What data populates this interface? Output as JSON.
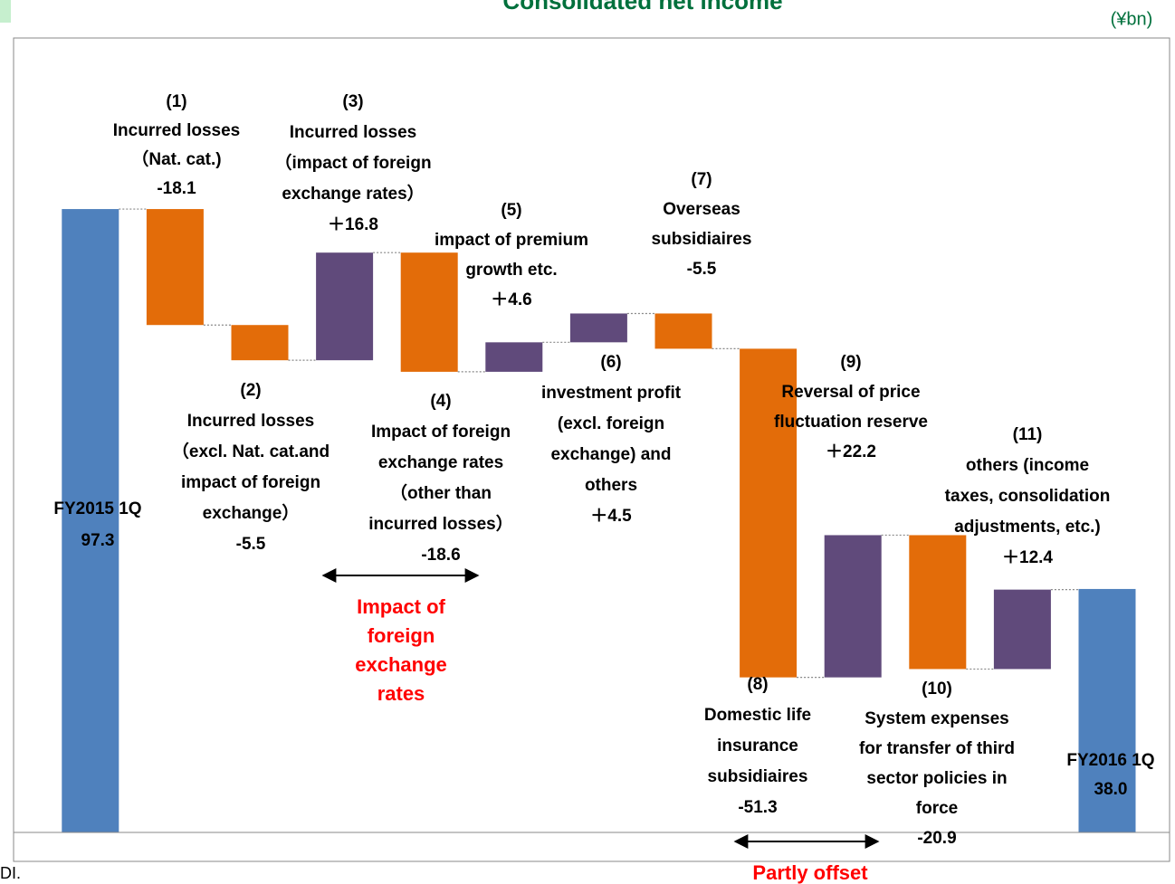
{
  "chart_data": {
    "type": "waterfall",
    "title": "Consolidated net income",
    "unit": "(¥bn)",
    "footnote": "DI.",
    "categories": [
      [
        "FY2015 1Q"
      ],
      [
        "(1)",
        "Incurred losses",
        "（Nat. cat.)"
      ],
      [
        "(2)",
        "Incurred losses",
        "（excl. Nat. cat.and",
        "impact of foreign",
        "exchange）"
      ],
      [
        "(3)",
        "Incurred losses",
        "（impact of foreign",
        "exchange rates）"
      ],
      [
        "(4)",
        "Impact of foreign",
        "exchange rates",
        "（other than",
        "incurred losses）"
      ],
      [
        "(5)",
        "impact of premium",
        "growth etc."
      ],
      [
        "(6)",
        "investment profit",
        "(excl. foreign",
        "exchange) and",
        "others"
      ],
      [
        "(7)",
        "Overseas",
        "subsidiaires"
      ],
      [
        "(8)",
        "Domestic life",
        "insurance",
        "subsidiaires"
      ],
      [
        "(9)",
        "Reversal of price",
        "fluctuation reserve"
      ],
      [
        "(10)",
        "System expenses",
        "for transfer of third",
        "sector policies in",
        "force"
      ],
      [
        "(11)",
        "others (income",
        "taxes, consolidation",
        "adjustments, etc.)"
      ],
      [
        "FY2016 1Q"
      ]
    ],
    "measures": [
      "total",
      "relative",
      "relative",
      "relative",
      "relative",
      "relative",
      "relative",
      "relative",
      "relative",
      "relative",
      "relative",
      "relative",
      "total"
    ],
    "values": [
      97.3,
      -18.1,
      -5.5,
      16.8,
      -18.6,
      4.6,
      4.5,
      -5.5,
      -51.3,
      22.2,
      -20.9,
      12.4,
      38.0
    ],
    "value_labels": [
      "97.3",
      "-18.1",
      "-5.5",
      "＋16.8",
      "-18.6",
      "＋4.6",
      "＋4.5",
      "-5.5",
      "-51.3",
      "＋22.2",
      "-20.9",
      "＋12.4",
      "38.0"
    ],
    "colors": [
      "#4f81bd",
      "#e36c09",
      "#e36c09",
      "#604a7b",
      "#e36c09",
      "#604a7b",
      "#604a7b",
      "#e36c09",
      "#e36c09",
      "#604a7b",
      "#e36c09",
      "#604a7b",
      "#4f81bd"
    ],
    "ylim": [
      0,
      124
    ],
    "annotations": [
      [
        "Impact of",
        "foreign",
        "exchange",
        "rates"
      ],
      [
        "Partly offset"
      ]
    ]
  }
}
